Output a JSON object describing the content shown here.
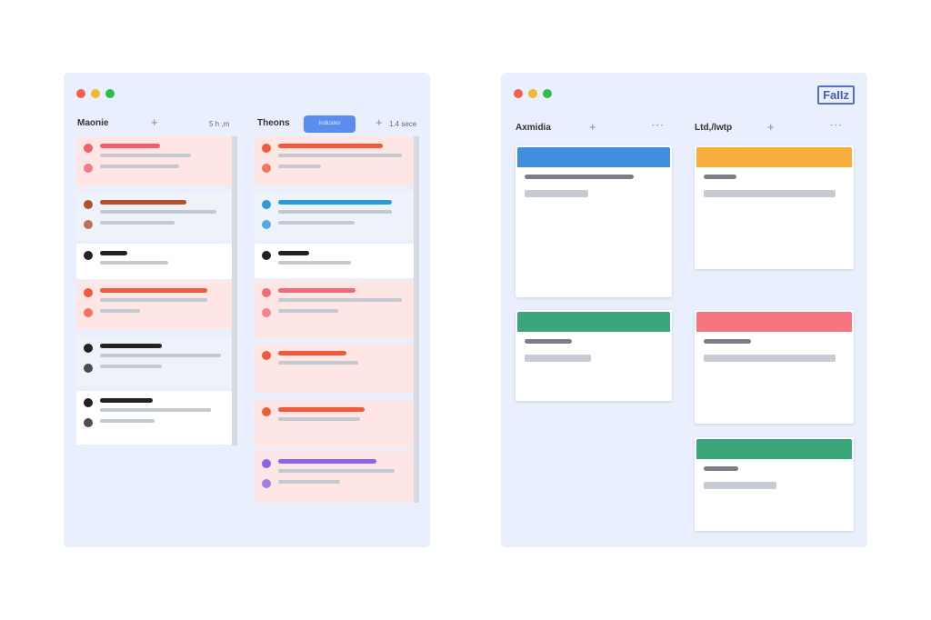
{
  "left_window": {
    "columns": [
      {
        "title": "Maonie",
        "meta": "5 h ,m"
      },
      {
        "title": "Theons",
        "meta": "1.4 sece",
        "button": "Indicates"
      }
    ],
    "cards": [
      [
        {
          "bg": "#fde6e4",
          "bar": "#f0606a",
          "w": [
            66,
            100,
            87
          ]
        },
        {
          "bg": "#eef3fa",
          "bar": "#b5502a",
          "w": [
            95,
            128,
            82
          ]
        },
        {
          "bg": "#ffffff",
          "bar": "#222222",
          "w": [
            30,
            75,
            0
          ]
        },
        {
          "bg": "#fde6e4",
          "bar": "#ee5a3c",
          "w": [
            118,
            118,
            44
          ]
        },
        {
          "bg": "#eef3fa",
          "bar": "#222222",
          "w": [
            68,
            133,
            68
          ]
        },
        {
          "bg": "#ffffff",
          "bar": "#222222",
          "w": [
            58,
            122,
            60
          ]
        }
      ],
      [
        {
          "bg": "#fde6e4",
          "bar": "#ee5a3c",
          "w": [
            115,
            136,
            47
          ]
        },
        {
          "bg": "#eef3fa",
          "bar": "#2a9ad8",
          "w": [
            125,
            125,
            84
          ]
        },
        {
          "bg": "#ffffff",
          "bar": "#222222",
          "w": [
            34,
            80,
            0
          ]
        },
        {
          "bg": "#fde6e4",
          "bar": "#f06a78",
          "w": [
            85,
            136,
            66
          ]
        },
        {
          "bg": "#fde6e4",
          "bar": "#ee5a3c",
          "w": [
            75,
            88,
            0
          ]
        },
        {
          "bg": "#fde6e4",
          "bar": "#ee5a3c",
          "w": [
            95,
            90,
            0
          ]
        },
        {
          "bg": "#fde6e4",
          "bar": "#8a63e8",
          "w": [
            108,
            128,
            68
          ]
        }
      ]
    ]
  },
  "right_window": {
    "badge": "FaIIz",
    "columns": [
      {
        "title": "Axmidia"
      },
      {
        "title": "Ltd,/lwtp"
      }
    ],
    "cards": [
      [
        {
          "color": "#3f8ee0"
        },
        {
          "color": "#3aa67a"
        }
      ],
      [
        {
          "color": "#f8ad3c"
        },
        {
          "color": "#f47480"
        },
        {
          "color": "#3aa67a"
        }
      ]
    ]
  },
  "colors": {
    "close": "#f2604f",
    "minimize": "#f5b731",
    "maximize": "#2dbe4e"
  }
}
